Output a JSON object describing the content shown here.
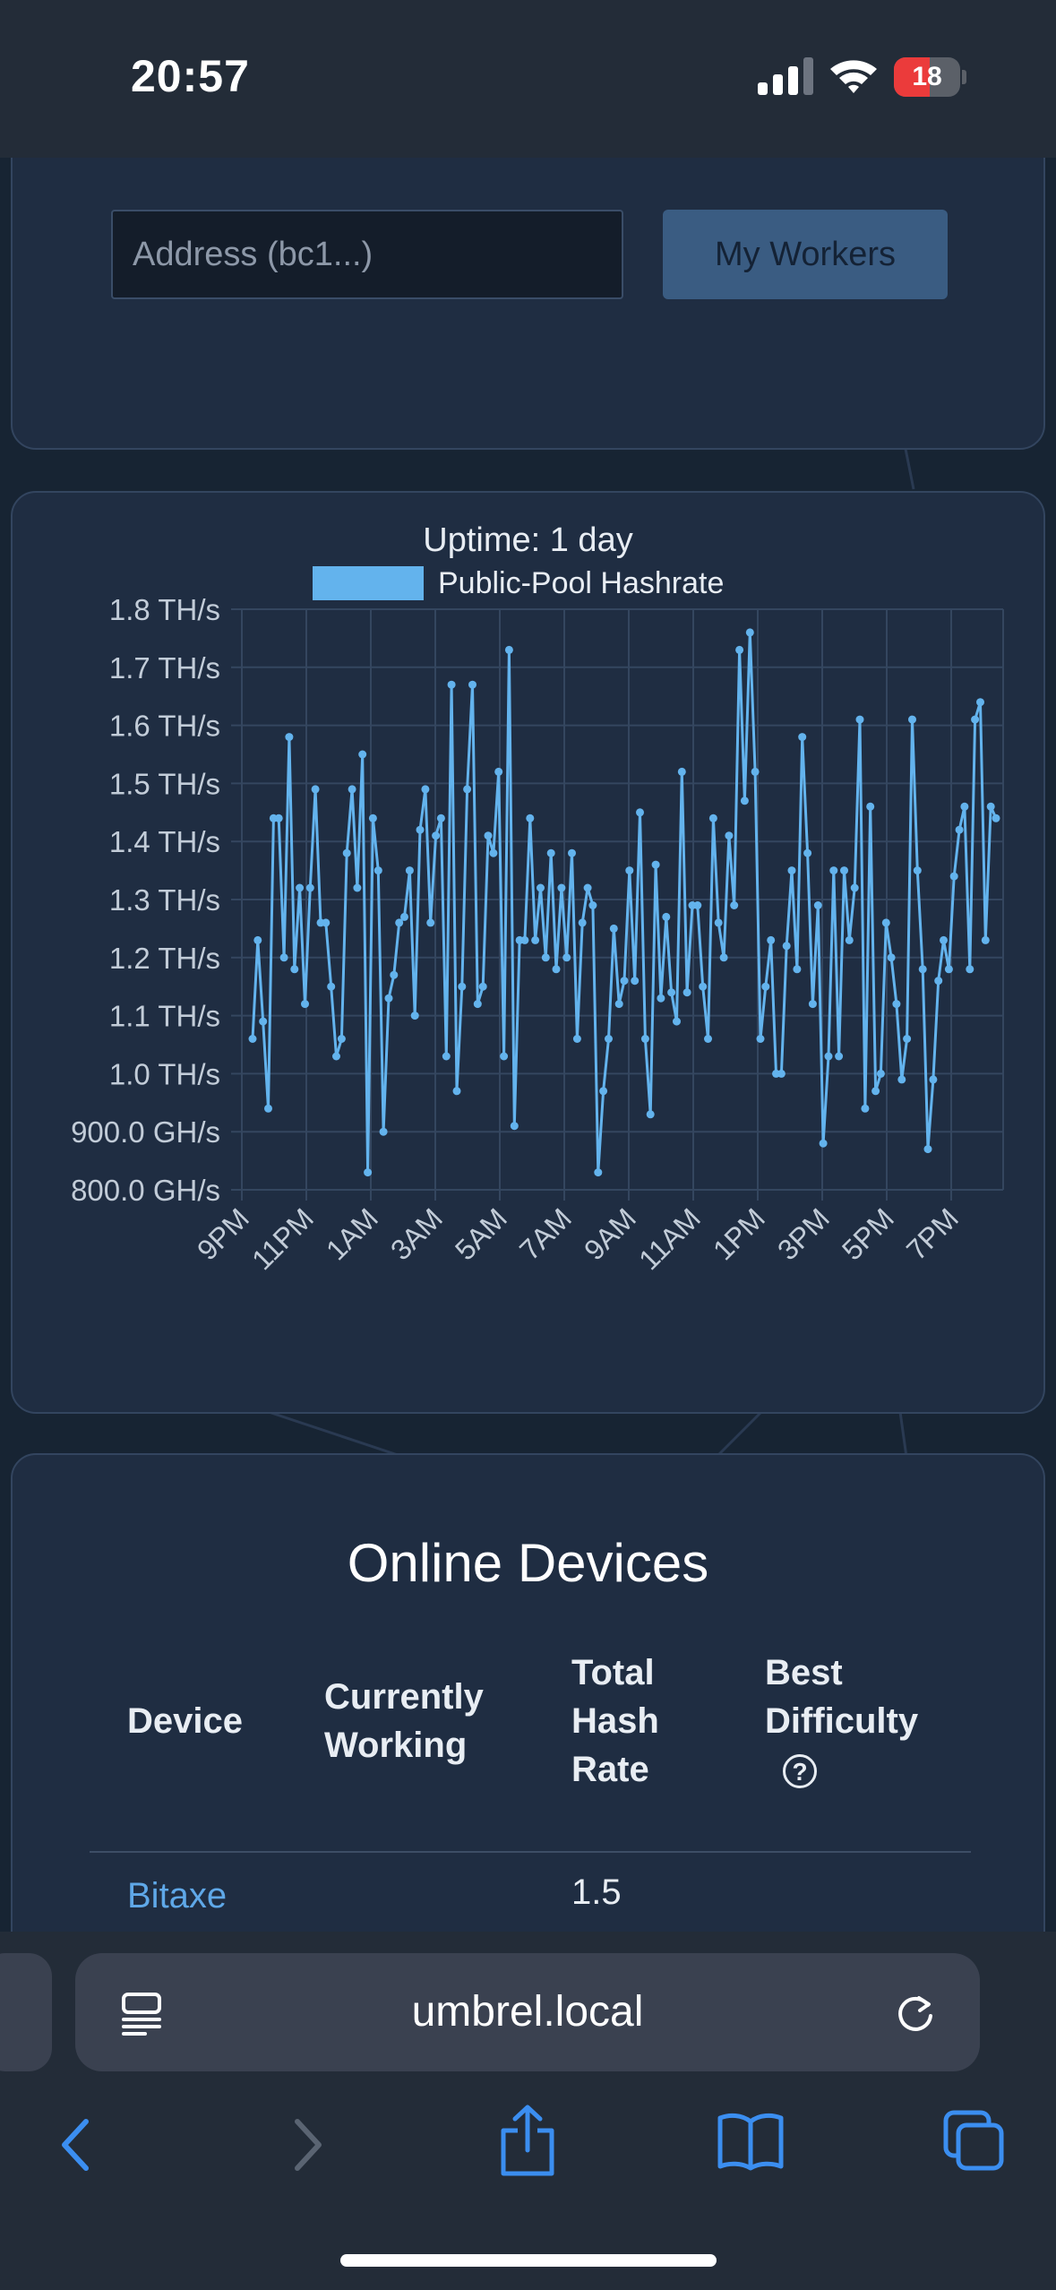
{
  "status_bar": {
    "time": "20:57",
    "battery": "18"
  },
  "top_card": {
    "address_placeholder": "Address (bc1...)",
    "workers_button": "My Workers"
  },
  "chart_card": {
    "uptime": "Uptime: 1 day"
  },
  "chart_data": {
    "type": "line",
    "legend": [
      "Public-Pool Hashrate"
    ],
    "legend_placement": "top",
    "grid": true,
    "ylim": [
      800,
      1800
    ],
    "y_ticks": [
      "1.8 TH/s",
      "1.7 TH/s",
      "1.6 TH/s",
      "1.5 TH/s",
      "1.4 TH/s",
      "1.3 TH/s",
      "1.2 TH/s",
      "1.1 TH/s",
      "1.0 TH/s",
      "900.0 GH/s",
      "800.0 GH/s"
    ],
    "x_ticks": [
      "9PM",
      "11PM",
      "1AM",
      "3AM",
      "5AM",
      "7AM",
      "9AM",
      "11AM",
      "1PM",
      "3PM",
      "5PM",
      "7PM"
    ],
    "series": [
      {
        "name": "Public-Pool Hashrate",
        "color": "#63b3ed",
        "values": [
          1060,
          1230,
          1090,
          940,
          1440,
          1440,
          1200,
          1580,
          1180,
          1320,
          1120,
          1320,
          1490,
          1260,
          1260,
          1150,
          1030,
          1060,
          1380,
          1490,
          1320,
          1550,
          830,
          1440,
          1350,
          900,
          1130,
          1170,
          1260,
          1270,
          1350,
          1100,
          1420,
          1490,
          1260,
          1410,
          1440,
          1030,
          1670,
          970,
          1150,
          1490,
          1670,
          1120,
          1150,
          1410,
          1380,
          1520,
          1030,
          1730,
          910,
          1230,
          1230,
          1440,
          1230,
          1320,
          1200,
          1380,
          1180,
          1320,
          1200,
          1380,
          1060,
          1260,
          1320,
          1290,
          830,
          970,
          1060,
          1250,
          1120,
          1160,
          1350,
          1160,
          1450,
          1060,
          930,
          1360,
          1130,
          1270,
          1140,
          1090,
          1520,
          1140,
          1290,
          1290,
          1150,
          1060,
          1440,
          1260,
          1200,
          1410,
          1290,
          1730,
          1470,
          1760,
          1520,
          1060,
          1150,
          1230,
          1000,
          1000,
          1220,
          1350,
          1180,
          1580,
          1380,
          1120,
          1290,
          880,
          1030,
          1350,
          1030,
          1350,
          1230,
          1320,
          1610,
          940,
          1460,
          970,
          1000,
          1260,
          1200,
          1120,
          990,
          1060,
          1610,
          1350,
          1180,
          870,
          990,
          1160,
          1230,
          1180,
          1340,
          1420,
          1460,
          1180,
          1610,
          1640,
          1230,
          1460,
          1440
        ]
      }
    ]
  },
  "devices_card": {
    "title": "Online Devices",
    "headers": {
      "device": [
        "Device"
      ],
      "working": [
        "Currently",
        "Working"
      ],
      "hash": [
        "Total",
        "Hash",
        "Rate"
      ],
      "best": [
        "Best",
        "Difficulty"
      ]
    },
    "help_icon": "?",
    "rows": [
      {
        "device": "Bitaxe",
        "hash_rate": "1.5"
      }
    ]
  },
  "safari": {
    "url": "umbrel.local"
  }
}
